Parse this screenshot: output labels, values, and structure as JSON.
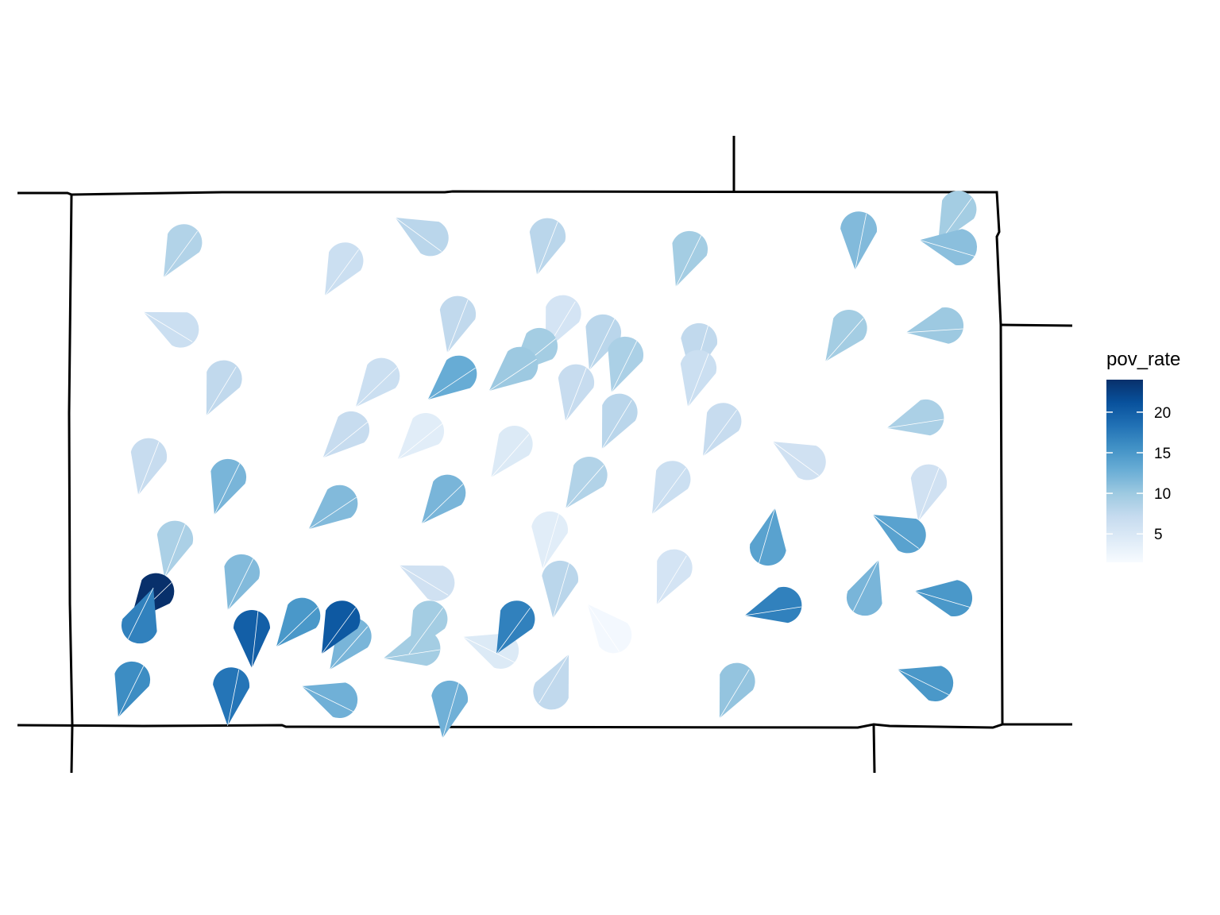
{
  "legend": {
    "title": "pov_rate",
    "ticks": [
      {
        "value": 5,
        "label": "5"
      },
      {
        "value": 10,
        "label": "10"
      },
      {
        "value": 15,
        "label": "15"
      },
      {
        "value": 20,
        "label": "20"
      }
    ],
    "range": [
      1.5,
      24
    ],
    "palette": [
      "#f7fbff",
      "#deebf7",
      "#c6dbef",
      "#9ecae1",
      "#6baed6",
      "#4292c6",
      "#2171b5",
      "#08519c",
      "#08306b"
    ]
  },
  "chart_data": {
    "type": "symbol-map",
    "symbol": "teardrop marker per location, fill mapped to pov_rate",
    "legend_placement": "right",
    "points": [
      {
        "pov_rate": 8.5
      },
      {
        "pov_rate": 6.5
      },
      {
        "pov_rate": 8.0
      },
      {
        "pov_rate": 8.0
      },
      {
        "pov_rate": 9.5
      },
      {
        "pov_rate": 11.5
      },
      {
        "pov_rate": 9.5
      },
      {
        "pov_rate": 11.0
      },
      {
        "pov_rate": 6.5
      },
      {
        "pov_rate": 7.5
      },
      {
        "pov_rate": 5.5
      },
      {
        "pov_rate": 8.0
      },
      {
        "pov_rate": 9.5
      },
      {
        "pov_rate": 10.0
      },
      {
        "pov_rate": 9.5
      },
      {
        "pov_rate": 9.0
      },
      {
        "pov_rate": 7.5
      },
      {
        "pov_rate": 7.5
      },
      {
        "pov_rate": 6.5
      },
      {
        "pov_rate": 13.0
      },
      {
        "pov_rate": 10.0
      },
      {
        "pov_rate": 7.0
      },
      {
        "pov_rate": 8.0
      },
      {
        "pov_rate": 6.5
      },
      {
        "pov_rate": 7.0
      },
      {
        "pov_rate": 9.0
      },
      {
        "pov_rate": 7.0
      },
      {
        "pov_rate": 7.0
      },
      {
        "pov_rate": 4.0
      },
      {
        "pov_rate": 4.5
      },
      {
        "pov_rate": 6.0
      },
      {
        "pov_rate": 12.0
      },
      {
        "pov_rate": 11.5
      },
      {
        "pov_rate": 12.0
      },
      {
        "pov_rate": 8.5
      },
      {
        "pov_rate": 6.5
      },
      {
        "pov_rate": 6.0
      },
      {
        "pov_rate": 9.0
      },
      {
        "pov_rate": 11.5
      },
      {
        "pov_rate": 4.0
      },
      {
        "pov_rate": 14.0
      },
      {
        "pov_rate": 14.0
      },
      {
        "pov_rate": 24.0
      },
      {
        "pov_rate": 6.0
      },
      {
        "pov_rate": 8.0
      },
      {
        "pov_rate": 5.5
      },
      {
        "pov_rate": 17.0
      },
      {
        "pov_rate": 12.0
      },
      {
        "pov_rate": 15.0
      },
      {
        "pov_rate": 17.0
      },
      {
        "pov_rate": 20.0
      },
      {
        "pov_rate": 15.0
      },
      {
        "pov_rate": 12.0
      },
      {
        "pov_rate": 9.5
      },
      {
        "pov_rate": 4.5
      },
      {
        "pov_rate": 2.0
      },
      {
        "pov_rate": 16.0
      },
      {
        "pov_rate": 18.0
      },
      {
        "pov_rate": 12.5
      },
      {
        "pov_rate": 12.5
      },
      {
        "pov_rate": 7.5
      },
      {
        "pov_rate": 10.5
      },
      {
        "pov_rate": 15.0
      },
      {
        "pov_rate": 20.5
      },
      {
        "pov_rate": 9.5
      },
      {
        "pov_rate": 17.0
      }
    ]
  }
}
